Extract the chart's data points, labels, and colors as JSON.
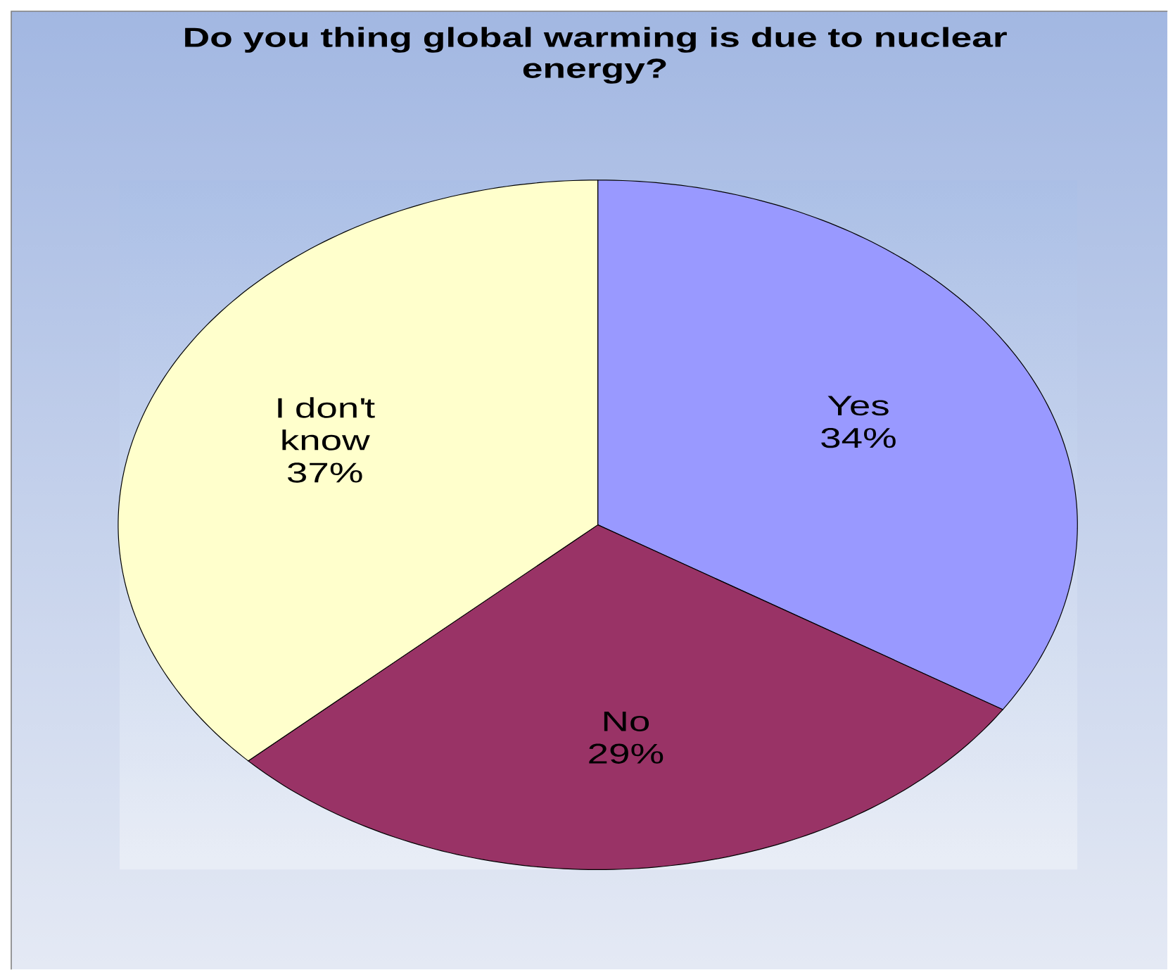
{
  "chart_data": {
    "type": "pie",
    "title": "Do you thing global warming is due to nuclear energy?",
    "categories": [
      "Yes",
      "No",
      "I don't know"
    ],
    "values": [
      34,
      29,
      37
    ],
    "value_labels": [
      "34%",
      "29%",
      "37%"
    ],
    "colors": [
      "#9999ff",
      "#993366",
      "#ffffcc"
    ]
  }
}
